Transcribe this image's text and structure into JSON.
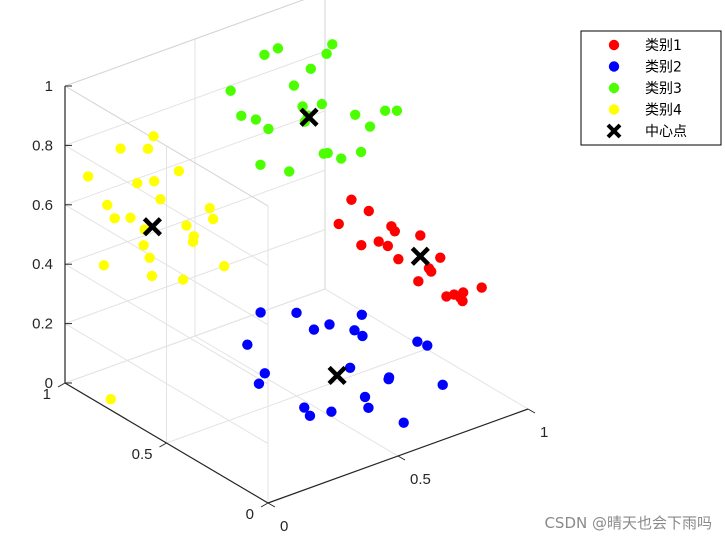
{
  "watermark": "CSDN @晴天也会下雨吗",
  "chart_data": {
    "type": "scatter3d",
    "zlim": [
      0,
      1
    ],
    "xlim": [
      0,
      1
    ],
    "ylim": [
      0,
      1
    ],
    "z_ticks": [
      "0",
      "0.2",
      "0.4",
      "0.6",
      "0.8",
      "1"
    ],
    "x_ticks": [
      "0",
      "0.5",
      "1"
    ],
    "y_ticks": [
      "0",
      "0.5",
      "1"
    ],
    "grid": true,
    "legend_position": "top-right",
    "series": [
      {
        "name": "类别1",
        "color": "#ff0000",
        "marker": "circle",
        "points": [
          [
            0.82,
            0.3,
            0.52
          ],
          [
            0.9,
            0.36,
            0.36
          ],
          [
            0.7,
            0.4,
            0.6
          ],
          [
            0.75,
            0.22,
            0.42
          ],
          [
            0.88,
            0.18,
            0.34
          ],
          [
            0.6,
            0.42,
            0.58
          ],
          [
            0.66,
            0.3,
            0.55
          ],
          [
            0.95,
            0.3,
            0.28
          ],
          [
            0.78,
            0.12,
            0.4
          ],
          [
            0.85,
            0.24,
            0.46
          ],
          [
            0.72,
            0.28,
            0.48
          ],
          [
            0.92,
            0.22,
            0.3
          ],
          [
            0.68,
            0.46,
            0.62
          ],
          [
            0.8,
            0.4,
            0.5
          ],
          [
            0.86,
            0.14,
            0.38
          ],
          [
            0.74,
            0.34,
            0.56
          ],
          [
            0.94,
            0.4,
            0.32
          ],
          [
            0.64,
            0.36,
            0.52
          ],
          [
            0.9,
            0.1,
            0.4
          ],
          [
            0.82,
            0.46,
            0.42
          ]
        ]
      },
      {
        "name": "类别2",
        "color": "#0000ff",
        "marker": "circle",
        "points": [
          [
            0.55,
            0.3,
            0.16
          ],
          [
            0.4,
            0.2,
            0.1
          ],
          [
            0.3,
            0.4,
            0.18
          ],
          [
            0.62,
            0.2,
            0.14
          ],
          [
            0.48,
            0.12,
            0.12
          ],
          [
            0.7,
            0.3,
            0.08
          ],
          [
            0.35,
            0.55,
            0.2
          ],
          [
            0.58,
            0.44,
            0.24
          ],
          [
            0.45,
            0.35,
            0.3
          ],
          [
            0.75,
            0.1,
            0.12
          ],
          [
            0.5,
            0.5,
            0.28
          ],
          [
            0.38,
            0.28,
            0.06
          ],
          [
            0.66,
            0.38,
            0.2
          ],
          [
            0.28,
            0.18,
            0.16
          ],
          [
            0.8,
            0.24,
            0.18
          ],
          [
            0.44,
            0.6,
            0.26
          ],
          [
            0.6,
            0.1,
            0.04
          ],
          [
            0.52,
            0.24,
            0.32
          ],
          [
            0.72,
            0.46,
            0.22
          ],
          [
            0.34,
            0.48,
            0.1
          ],
          [
            0.84,
            0.34,
            0.14
          ],
          [
            0.42,
            0.06,
            0.2
          ]
        ]
      },
      {
        "name": "类别3",
        "color": "#4cff00",
        "marker": "circle",
        "points": [
          [
            0.7,
            0.7,
            0.8
          ],
          [
            0.85,
            0.8,
            0.92
          ],
          [
            0.6,
            0.9,
            0.75
          ],
          [
            0.75,
            0.6,
            0.68
          ],
          [
            0.5,
            0.7,
            0.85
          ],
          [
            0.9,
            0.65,
            0.72
          ],
          [
            0.65,
            0.85,
            0.96
          ],
          [
            0.8,
            0.75,
            0.62
          ],
          [
            0.55,
            0.6,
            0.7
          ],
          [
            0.95,
            0.9,
            0.88
          ],
          [
            0.72,
            0.92,
            0.66
          ],
          [
            0.62,
            0.5,
            0.78
          ],
          [
            0.88,
            0.55,
            0.82
          ],
          [
            0.78,
            0.95,
            0.9
          ],
          [
            0.58,
            0.78,
            0.64
          ],
          [
            0.68,
            0.66,
            0.98
          ],
          [
            0.92,
            0.72,
            0.6
          ],
          [
            0.82,
            0.88,
            0.72
          ],
          [
            0.52,
            0.85,
            0.88
          ],
          [
            0.98,
            0.62,
            0.76
          ],
          [
            0.66,
            0.58,
            0.9
          ],
          [
            0.86,
            0.92,
            0.64
          ],
          [
            0.74,
            0.82,
            0.84
          ],
          [
            0.96,
            0.8,
            0.68
          ]
        ]
      },
      {
        "name": "类别4",
        "color": "#ffff00",
        "marker": "circle",
        "points": [
          [
            0.15,
            0.8,
            0.55
          ],
          [
            0.2,
            0.9,
            0.65
          ],
          [
            0.1,
            0.7,
            0.45
          ],
          [
            0.25,
            0.85,
            0.6
          ],
          [
            0.05,
            0.95,
            0.7
          ],
          [
            0.3,
            0.75,
            0.5
          ],
          [
            0.18,
            0.6,
            0.58
          ],
          [
            0.12,
            0.88,
            0.8
          ],
          [
            0.28,
            0.95,
            0.72
          ],
          [
            0.08,
            0.78,
            0.62
          ],
          [
            0.22,
            0.7,
            0.4
          ],
          [
            0.35,
            0.85,
            0.48
          ],
          [
            0.16,
            0.96,
            0.52
          ],
          [
            0.26,
            0.62,
            0.66
          ],
          [
            0.04,
            0.86,
            0.44
          ],
          [
            0.32,
            0.68,
            0.58
          ],
          [
            0.14,
            0.74,
            0.74
          ],
          [
            0.24,
            0.92,
            0.42
          ],
          [
            0.06,
            0.66,
            0.54
          ],
          [
            0.36,
            0.9,
            0.64
          ],
          [
            0.2,
            0.82,
            0.84
          ],
          [
            0.1,
            0.92,
            0.6
          ],
          [
            0.3,
            0.6,
            0.46
          ],
          [
            0.02,
            0.8,
            0.02
          ]
        ]
      },
      {
        "name": "中心点",
        "color": "#000000",
        "marker": "x",
        "points": [
          [
            0.82,
            0.3,
            0.45
          ],
          [
            0.5,
            0.3,
            0.15
          ],
          [
            0.72,
            0.72,
            0.78
          ],
          [
            0.18,
            0.8,
            0.55
          ]
        ]
      }
    ]
  }
}
